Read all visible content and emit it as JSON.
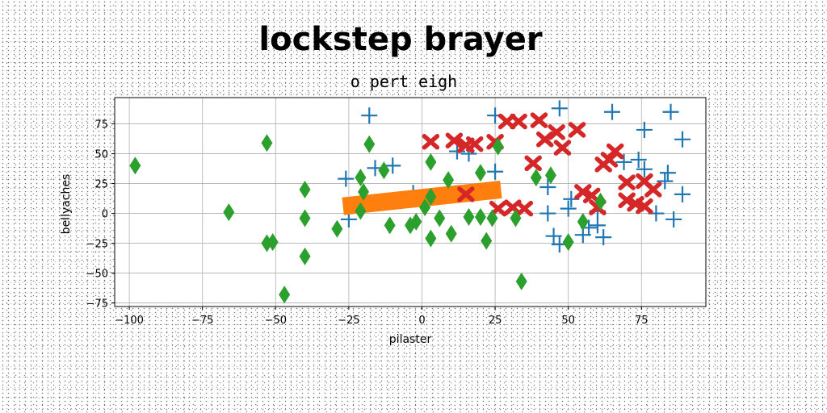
{
  "chart_data": {
    "type": "scatter",
    "title": "lockstep brayer",
    "subtitle": "o pert eigh",
    "xlabel": "pilaster",
    "ylabel": "bellyaches",
    "xlim": [
      -105,
      97
    ],
    "ylim": [
      -78,
      97
    ],
    "xticks": [
      -100,
      -75,
      -50,
      -25,
      0,
      25,
      50,
      75
    ],
    "yticks": [
      -75,
      -50,
      -25,
      0,
      25,
      50,
      75
    ],
    "xtick_labels": [
      "−100",
      "−75",
      "−50",
      "−25",
      "0",
      "25",
      "50",
      "75"
    ],
    "ytick_labels": [
      "−75",
      "−50",
      "−25",
      "0",
      "25",
      "50",
      "75"
    ],
    "grid": true,
    "series": [
      {
        "marker": "plus",
        "color": "#1f77b4",
        "points": [
          [
            -18,
            82
          ],
          [
            25,
            82
          ],
          [
            47,
            88
          ],
          [
            65,
            85
          ],
          [
            85,
            85
          ],
          [
            76,
            70
          ],
          [
            89,
            62
          ],
          [
            12,
            52
          ],
          [
            16,
            50
          ],
          [
            69,
            43
          ],
          [
            74,
            45
          ],
          [
            76,
            37
          ],
          [
            84,
            34
          ],
          [
            83,
            27
          ],
          [
            -26,
            29
          ],
          [
            -16,
            38
          ],
          [
            25,
            35
          ],
          [
            43,
            22
          ],
          [
            51,
            12
          ],
          [
            89,
            16
          ],
          [
            50,
            4
          ],
          [
            -25,
            -5
          ],
          [
            -3,
            17
          ],
          [
            43,
            0
          ],
          [
            60,
            2
          ],
          [
            80,
            0
          ],
          [
            86,
            -5
          ],
          [
            57,
            -12
          ],
          [
            62,
            -20
          ],
          [
            45,
            -19
          ],
          [
            47,
            -26
          ],
          [
            55,
            -18
          ],
          [
            60,
            -10
          ],
          [
            -10,
            40
          ],
          [
            5,
            15
          ]
        ]
      },
      {
        "marker": "line",
        "color": "#ff7f0e",
        "points": [
          [
            -27,
            6
          ],
          [
            27,
            20
          ]
        ]
      },
      {
        "marker": "x",
        "color": "#d62728",
        "points": [
          [
            3,
            60
          ],
          [
            11,
            61
          ],
          [
            15,
            57
          ],
          [
            18,
            58
          ],
          [
            25,
            60
          ],
          [
            29,
            77
          ],
          [
            33,
            77
          ],
          [
            40,
            78
          ],
          [
            42,
            62
          ],
          [
            46,
            68
          ],
          [
            48,
            55
          ],
          [
            53,
            70
          ],
          [
            38,
            42
          ],
          [
            15,
            16
          ],
          [
            26,
            4
          ],
          [
            31,
            5
          ],
          [
            35,
            4
          ],
          [
            55,
            18
          ],
          [
            58,
            15
          ],
          [
            60,
            5
          ],
          [
            62,
            41
          ],
          [
            64,
            45
          ],
          [
            66,
            52
          ],
          [
            70,
            26
          ],
          [
            70,
            11
          ],
          [
            73,
            8
          ],
          [
            76,
            6
          ],
          [
            76,
            27
          ],
          [
            79,
            20
          ]
        ]
      },
      {
        "marker": "diamond",
        "color": "#2ca02c",
        "points": [
          [
            -98,
            40
          ],
          [
            -66,
            1
          ],
          [
            -53,
            -25
          ],
          [
            -51,
            -24
          ],
          [
            -53,
            59
          ],
          [
            -40,
            20
          ],
          [
            -40,
            -4
          ],
          [
            -40,
            -36
          ],
          [
            -47,
            -68
          ],
          [
            -29,
            -13
          ],
          [
            -21,
            2
          ],
          [
            -21,
            30
          ],
          [
            -20,
            18
          ],
          [
            -18,
            58
          ],
          [
            -13,
            36
          ],
          [
            -11,
            -10
          ],
          [
            -4,
            -10
          ],
          [
            -2,
            -7
          ],
          [
            1,
            5
          ],
          [
            3,
            14
          ],
          [
            3,
            -21
          ],
          [
            3,
            43
          ],
          [
            6,
            -4
          ],
          [
            9,
            28
          ],
          [
            10,
            -17
          ],
          [
            16,
            -3
          ],
          [
            20,
            -3
          ],
          [
            20,
            34
          ],
          [
            22,
            -23
          ],
          [
            24,
            -4
          ],
          [
            26,
            56
          ],
          [
            32,
            -4
          ],
          [
            34,
            -57
          ],
          [
            39,
            30
          ],
          [
            44,
            32
          ],
          [
            50,
            -24
          ],
          [
            55,
            -7
          ],
          [
            61,
            10
          ]
        ]
      }
    ]
  }
}
